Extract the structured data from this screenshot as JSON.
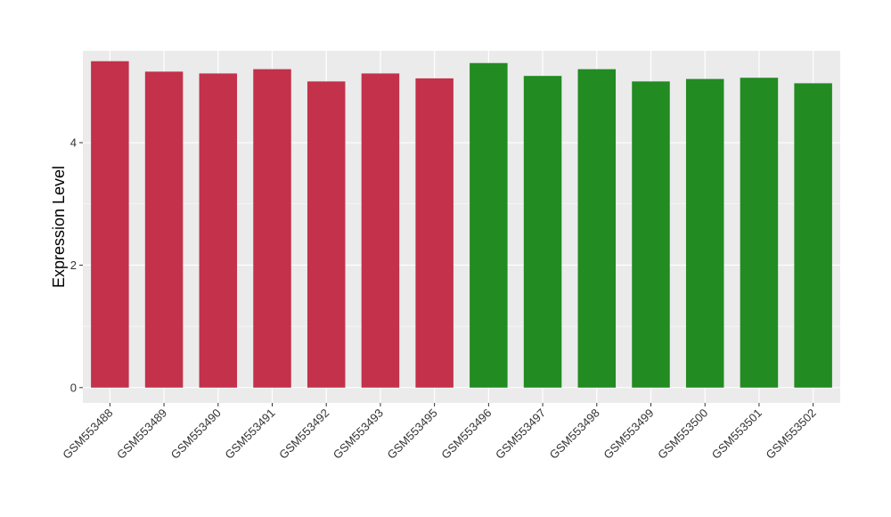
{
  "chart_data": {
    "type": "bar",
    "title": "",
    "xlabel": "",
    "ylabel": "Expression Level",
    "ylim": [
      -0.25,
      5.5
    ],
    "yticks": [
      0,
      2,
      4
    ],
    "grid": true,
    "legend": "none",
    "panel_background": "#EBEBEB",
    "categories": [
      "GSM553488",
      "GSM553489",
      "GSM553490",
      "GSM553491",
      "GSM553492",
      "GSM553493",
      "GSM553495",
      "GSM553496",
      "GSM553497",
      "GSM553498",
      "GSM553499",
      "GSM553500",
      "GSM553501",
      "GSM553502"
    ],
    "values": [
      5.33,
      5.16,
      5.13,
      5.2,
      5.0,
      5.13,
      5.05,
      5.3,
      5.09,
      5.2,
      5.0,
      5.04,
      5.06,
      4.97
    ],
    "bar_colors": [
      "#C3314A",
      "#C3314A",
      "#C3314A",
      "#C3314A",
      "#C3314A",
      "#C3314A",
      "#C3314A",
      "#228B22",
      "#228B22",
      "#228B22",
      "#228B22",
      "#228B22",
      "#228B22",
      "#228B22"
    ]
  }
}
